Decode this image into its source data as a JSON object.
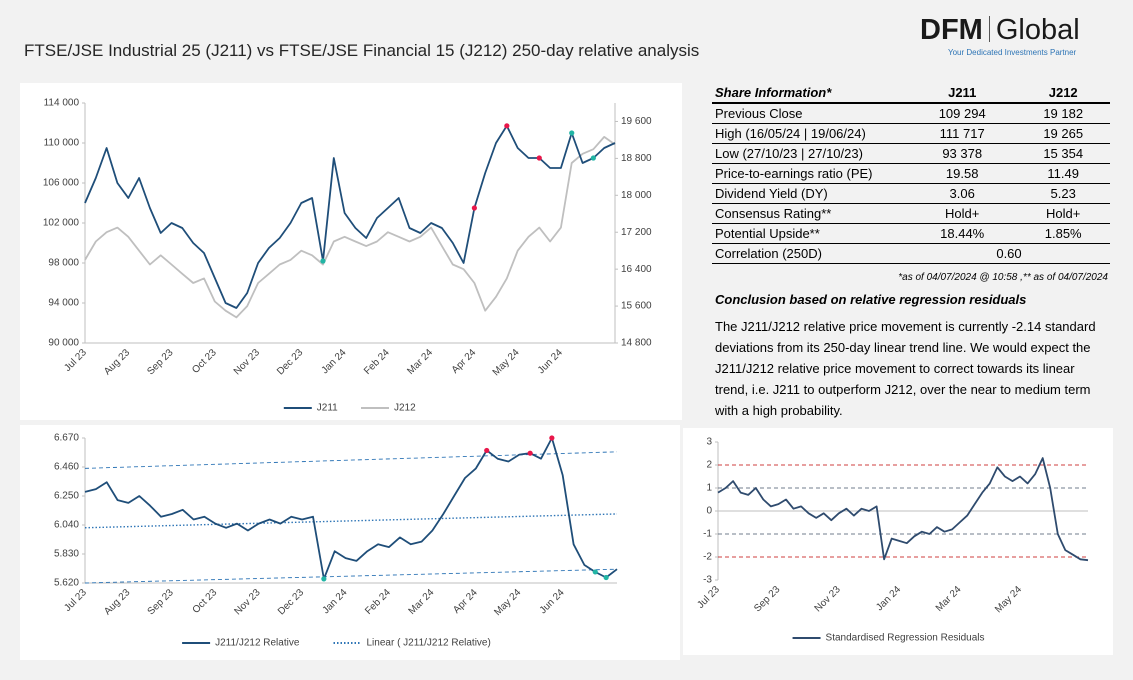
{
  "header": {
    "title": "FTSE/JSE Industrial 25 (J211) vs FTSE/JSE Financial 15 (J212) 250-day relative analysis",
    "logo": {
      "brand": "DFM",
      "name": "Global",
      "tagline": "Your Dedicated Investments Partner"
    }
  },
  "chart_data": [
    {
      "type": "line",
      "categories": [
        "Jul 23",
        null,
        null,
        null,
        "Aug 23",
        null,
        null,
        null,
        "Sep 23",
        null,
        null,
        null,
        "Oct 23",
        null,
        null,
        null,
        "Nov 23",
        null,
        null,
        null,
        "Dec 23",
        null,
        null,
        null,
        "Jan 24",
        null,
        null,
        null,
        "Feb 24",
        null,
        null,
        null,
        "Mar 24",
        null,
        null,
        null,
        "Apr 24",
        null,
        null,
        null,
        "May 24",
        null,
        null,
        null,
        "Jun 24",
        null,
        null,
        null,
        null,
        null
      ],
      "series": [
        {
          "name": "J211",
          "color": "#1f4e79",
          "values": [
            104000,
            106500,
            109500,
            106000,
            104500,
            106500,
            103500,
            101000,
            102000,
            101500,
            100000,
            99000,
            96500,
            94000,
            93500,
            95000,
            98000,
            99500,
            100500,
            102000,
            104000,
            104500,
            98200,
            108500,
            103000,
            101500,
            100500,
            102500,
            103500,
            104500,
            101500,
            101000,
            102000,
            101500,
            100000,
            98000,
            103500,
            107000,
            110000,
            111717,
            109500,
            108500,
            108500,
            107500,
            107500,
            111000,
            108000,
            108500,
            109500,
            110000
          ]
        },
        {
          "name": "J212",
          "color": "#bfbfbf",
          "axis": "y2",
          "values": [
            16600,
            17000,
            17200,
            17300,
            17100,
            16800,
            16500,
            16700,
            16500,
            16300,
            16100,
            16200,
            15700,
            15500,
            15354,
            15600,
            16100,
            16300,
            16500,
            16600,
            16800,
            16700,
            16500,
            17000,
            17100,
            17000,
            16900,
            17000,
            17200,
            17100,
            17000,
            17100,
            17300,
            16900,
            16500,
            16400,
            16100,
            15500,
            15800,
            16200,
            16800,
            17100,
            17300,
            17000,
            17300,
            18700,
            18900,
            19000,
            19265,
            19100
          ]
        }
      ],
      "markers": [
        {
          "color": "#e8174a",
          "points": [
            36,
            39,
            42
          ]
        },
        {
          "color": "#22b5a5",
          "points": [
            22,
            45,
            47
          ]
        }
      ],
      "ylim": [
        90000,
        114000
      ],
      "yticks": [
        {
          "value": 90000,
          "label": "90 000"
        },
        {
          "value": 94000,
          "label": "94 000"
        },
        {
          "value": 98000,
          "label": "98 000"
        },
        {
          "value": 102000,
          "label": "102 000"
        },
        {
          "value": 106000,
          "label": "106 000"
        },
        {
          "value": 110000,
          "label": "110 000"
        },
        {
          "value": 114000,
          "label": "114 000"
        }
      ],
      "y2lim": [
        14800,
        20000
      ],
      "y2ticks": [
        {
          "value": 14800,
          "label": "14 800"
        },
        {
          "value": 15600,
          "label": "15 600"
        },
        {
          "value": 16400,
          "label": "16 400"
        },
        {
          "value": 17200,
          "label": "17 200"
        },
        {
          "value": 18000,
          "label": "18 000"
        },
        {
          "value": 18800,
          "label": "18 800"
        },
        {
          "value": 19600,
          "label": "19 600"
        }
      ],
      "grid": false,
      "legend": "bottom"
    },
    {
      "type": "line",
      "categories": [
        "Jul 23",
        null,
        null,
        null,
        "Aug 23",
        null,
        null,
        null,
        "Sep 23",
        null,
        null,
        null,
        "Oct 23",
        null,
        null,
        null,
        "Nov 23",
        null,
        null,
        null,
        "Dec 23",
        null,
        null,
        null,
        "Jan 24",
        null,
        null,
        null,
        "Feb 24",
        null,
        null,
        null,
        "Mar 24",
        null,
        null,
        null,
        "Apr 24",
        null,
        null,
        null,
        "May 24",
        null,
        null,
        null,
        "Jun 24",
        null,
        null,
        null,
        null,
        null
      ],
      "series": [
        {
          "name": "J211/J212 Relative",
          "color": "#1f4e79",
          "values": [
            6.28,
            6.3,
            6.35,
            6.22,
            6.2,
            6.25,
            6.18,
            6.1,
            6.12,
            6.15,
            6.08,
            6.1,
            6.05,
            6.02,
            6.05,
            6.0,
            6.05,
            6.08,
            6.05,
            6.1,
            6.08,
            6.1,
            5.65,
            5.85,
            5.8,
            5.78,
            5.85,
            5.9,
            5.88,
            5.95,
            5.9,
            5.92,
            6.0,
            6.12,
            6.25,
            6.38,
            6.45,
            6.58,
            6.52,
            6.5,
            6.55,
            6.56,
            6.52,
            6.67,
            6.4,
            5.9,
            5.75,
            5.7,
            5.66,
            5.72
          ]
        }
      ],
      "trend": {
        "name": "Linear ( J211/J212 Relative)",
        "color": "#2e75b6",
        "values": [
          6.02,
          6.12
        ]
      },
      "upper_band": [
        6.45,
        6.57
      ],
      "lower_band": [
        5.62,
        5.72
      ],
      "markers": [
        {
          "color": "#e8174a",
          "points": [
            37,
            41,
            43
          ]
        },
        {
          "color": "#22b5a5",
          "points": [
            22,
            47,
            48
          ]
        }
      ],
      "ylim": [
        5.62,
        6.67
      ],
      "yticks": [
        {
          "value": 5.62,
          "label": "5.620"
        },
        {
          "value": 5.83,
          "label": "5.830"
        },
        {
          "value": 6.04,
          "label": "6.040"
        },
        {
          "value": 6.25,
          "label": "6.250"
        },
        {
          "value": 6.46,
          "label": "6.460"
        },
        {
          "value": 6.67,
          "label": "6.670"
        }
      ],
      "grid": false,
      "legend": "bottom"
    },
    {
      "type": "line",
      "categories": [
        "Jul 23",
        null,
        null,
        null,
        null,
        null,
        null,
        null,
        "Sep 23",
        null,
        null,
        null,
        null,
        null,
        null,
        null,
        "Nov 23",
        null,
        null,
        null,
        null,
        null,
        null,
        null,
        "Jan 24",
        null,
        null,
        null,
        null,
        null,
        null,
        null,
        "Mar 24",
        null,
        null,
        null,
        null,
        null,
        null,
        null,
        "May 24",
        null,
        null,
        null,
        null,
        null,
        null,
        null,
        null,
        null
      ],
      "series": [
        {
          "name": "Standardised Regression Residuals",
          "color": "#2f4b6e",
          "values": [
            0.8,
            1.0,
            1.3,
            0.8,
            0.7,
            1.0,
            0.5,
            0.2,
            0.3,
            0.5,
            0.1,
            0.2,
            -0.1,
            -0.3,
            -0.1,
            -0.4,
            -0.1,
            0.1,
            -0.2,
            0.1,
            0.0,
            0.2,
            -2.1,
            -1.2,
            -1.3,
            -1.4,
            -1.1,
            -0.9,
            -1.0,
            -0.7,
            -0.9,
            -0.8,
            -0.5,
            -0.2,
            0.3,
            0.8,
            1.2,
            1.9,
            1.5,
            1.3,
            1.5,
            1.2,
            1.6,
            2.3,
            1.0,
            -1.0,
            -1.7,
            -1.9,
            -2.1,
            -2.14
          ]
        }
      ],
      "thresholds": [
        {
          "value": 2,
          "color": "#c00000"
        },
        {
          "value": 1,
          "color": "#44546a"
        },
        {
          "value": -1,
          "color": "#44546a"
        },
        {
          "value": -2,
          "color": "#c00000"
        }
      ],
      "ylim": [
        -3,
        3
      ],
      "yticks": [
        -3,
        -2,
        -1,
        0,
        1,
        2,
        3
      ],
      "grid": false,
      "legend": "bottom"
    }
  ],
  "table": {
    "header": [
      "Share Information*",
      "J211",
      "J212"
    ],
    "rows": [
      [
        "Previous Close",
        "109 294",
        "19 182"
      ],
      [
        "High (16/05/24 | 19/06/24)",
        "111 717",
        "19 265"
      ],
      [
        "Low (27/10/23 | 27/10/23)",
        "93 378",
        "15 354"
      ],
      [
        "Price-to-earnings ratio (PE)",
        "19.58",
        "11.49"
      ],
      [
        "Dividend Yield (DY)",
        "3.06",
        "5.23"
      ],
      [
        "Consensus Rating**",
        "Hold+",
        "Hold+"
      ],
      [
        "Potential Upside**",
        "18.44%",
        "1.85%"
      ],
      [
        "Correlation (250D)",
        "0.60"
      ]
    ],
    "footnote": "*as of 04/07/2024 @ 10:58 ,** as of 04/07/2024"
  },
  "conclusion": {
    "title": "Conclusion based on relative regression residuals",
    "text": "The J211/J212 relative price movement is currently -2.14 standard deviations from its 250-day linear trend line. We would expect the J211/J212 relative price movement to correct towards its linear trend, i.e. J211 to outperform J212, over the near to medium term with a high probability."
  }
}
